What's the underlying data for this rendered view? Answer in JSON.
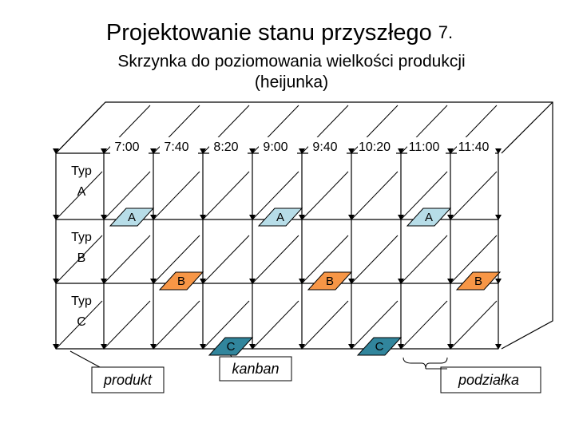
{
  "header": {
    "title": "Projektowanie stanu przyszłego",
    "title_suffix": "7.",
    "subtitle": [
      "Skrzynka do poziomowania wielkości produkcji",
      "(heijunka)"
    ]
  },
  "box": {
    "time_slots": [
      "7:00",
      "7:40",
      "8:20",
      "9:00",
      "9:40",
      "10:20",
      "11:00",
      "11:40"
    ],
    "rows": [
      {
        "type": "Typ",
        "name": "A",
        "cards": [
          "A",
          "A",
          "A"
        ]
      },
      {
        "type": "Typ",
        "name": "B",
        "cards": [
          "B",
          "B",
          "B"
        ]
      },
      {
        "type": "Typ",
        "name": "C",
        "cards": [
          "C",
          "C"
        ]
      }
    ]
  },
  "callouts": {
    "product": "produkt",
    "kanban": "kanban",
    "pitch": "podziałka"
  }
}
